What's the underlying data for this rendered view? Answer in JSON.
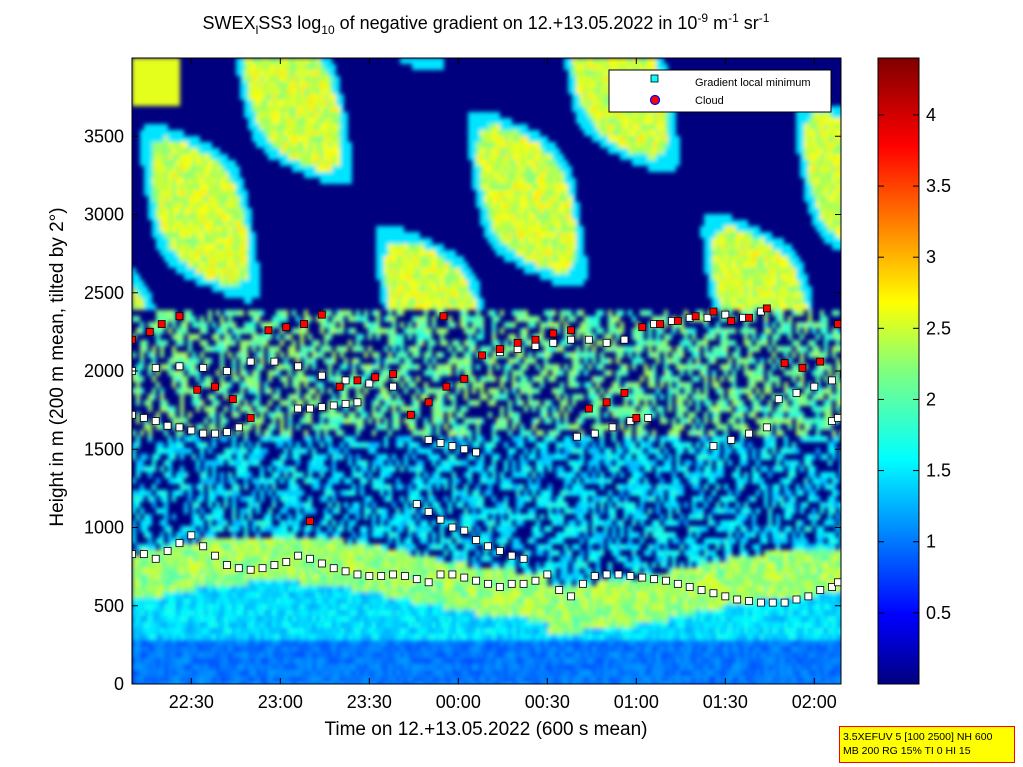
{
  "title": {
    "prefix": "SWEX",
    "sub1": "l",
    "mid": "SS3 log",
    "sub2": "10",
    "suffix": " of negative gradient on 12.+13.05.2022 in 10",
    "exp1": "-9",
    "unit1": " m",
    "exp2": "-1",
    "unit2": " sr",
    "exp3": "-1"
  },
  "xlabel": "Time on 12.+13.05.2022 (600 s mean)",
  "ylabel": "Height in m (200 m mean, tilted by 2°)",
  "info_lines": [
    "3.5XEFUV 5 [100 2500] NH 600",
    "MB 200 RG 15% TI 0 HI 15"
  ],
  "colors": {
    "dark_blue": "#00007f",
    "point_fill": "#ffffff",
    "local_min_fill": "#00ffff",
    "cloud_fill": "#ff0000"
  },
  "chart_data": {
    "type": "heatmap",
    "xlim": [
      "22:10",
      "02:09"
    ],
    "ylim": [
      0,
      4000
    ],
    "x_ticks": [
      "22:30",
      "23:00",
      "23:30",
      "00:00",
      "00:30",
      "01:00",
      "01:30",
      "02:00"
    ],
    "y_ticks": [
      "0",
      "500",
      "1000",
      "1500",
      "2000",
      "2500",
      "3000",
      "3500"
    ],
    "colorbar": {
      "min": 0,
      "max": 4.4,
      "ticks": [
        "0.5",
        "1",
        "1.5",
        "2",
        "2.5",
        "3",
        "3.5",
        "4"
      ],
      "colormap": "jet"
    },
    "legend": {
      "position": "top-right",
      "entries": [
        {
          "label": "Gradient local minimum",
          "marker": "square",
          "color": "#00ffff"
        },
        {
          "label": "Cloud",
          "marker": "circle",
          "color": "#ff0000"
        }
      ]
    },
    "series": [
      {
        "name": "Gradient local minimum",
        "layers": [
          {
            "points": [
              [
                0,
                830
              ],
              [
                4,
                830
              ],
              [
                8,
                800
              ],
              [
                12,
                850
              ],
              [
                16,
                900
              ],
              [
                20,
                950
              ],
              [
                24,
                880
              ],
              [
                28,
                820
              ],
              [
                32,
                760
              ],
              [
                36,
                740
              ],
              [
                40,
                730
              ],
              [
                44,
                740
              ],
              [
                48,
                760
              ],
              [
                52,
                780
              ],
              [
                56,
                820
              ],
              [
                60,
                800
              ],
              [
                64,
                770
              ],
              [
                68,
                740
              ],
              [
                72,
                720
              ],
              [
                76,
                700
              ],
              [
                80,
                690
              ],
              [
                84,
                690
              ],
              [
                88,
                700
              ],
              [
                92,
                690
              ],
              [
                96,
                670
              ],
              [
                100,
                650
              ],
              [
                104,
                700
              ],
              [
                108,
                700
              ],
              [
                112,
                680
              ],
              [
                116,
                660
              ],
              [
                120,
                640
              ],
              [
                124,
                620
              ],
              [
                128,
                640
              ],
              [
                132,
                640
              ],
              [
                136,
                660
              ],
              [
                140,
                700
              ],
              [
                144,
                600
              ],
              [
                148,
                560
              ],
              [
                152,
                640
              ],
              [
                156,
                690
              ],
              [
                160,
                700
              ],
              [
                164,
                700
              ],
              [
                168,
                690
              ],
              [
                172,
                680
              ],
              [
                176,
                670
              ],
              [
                180,
                660
              ],
              [
                184,
                640
              ],
              [
                188,
                620
              ],
              [
                192,
                600
              ],
              [
                196,
                580
              ],
              [
                200,
                560
              ],
              [
                204,
                540
              ],
              [
                208,
                530
              ],
              [
                212,
                520
              ],
              [
                216,
                520
              ],
              [
                220,
                520
              ],
              [
                224,
                540
              ],
              [
                228,
                560
              ],
              [
                232,
                600
              ],
              [
                236,
                620
              ],
              [
                238,
                650
              ]
            ]
          },
          {
            "points": [
              [
                96,
                1150
              ],
              [
                100,
                1100
              ],
              [
                104,
                1050
              ],
              [
                108,
                1000
              ],
              [
                112,
                980
              ],
              [
                116,
                920
              ],
              [
                120,
                880
              ],
              [
                124,
                850
              ],
              [
                128,
                820
              ],
              [
                132,
                800
              ]
            ]
          },
          {
            "points": [
              [
                0,
                1720
              ],
              [
                4,
                1700
              ],
              [
                8,
                1680
              ],
              [
                12,
                1650
              ],
              [
                16,
                1640
              ],
              [
                20,
                1620
              ],
              [
                24,
                1600
              ],
              [
                28,
                1600
              ],
              [
                32,
                1610
              ],
              [
                36,
                1640
              ]
            ]
          },
          {
            "points": [
              [
                0,
                2000
              ],
              [
                8,
                2020
              ],
              [
                16,
                2030
              ],
              [
                24,
                2020
              ],
              [
                32,
                2000
              ],
              [
                40,
                2060
              ],
              [
                48,
                2060
              ],
              [
                56,
                2030
              ],
              [
                64,
                1970
              ],
              [
                72,
                1940
              ],
              [
                80,
                1920
              ],
              [
                88,
                1900
              ]
            ]
          },
          {
            "points": [
              [
                56,
                1760
              ],
              [
                60,
                1760
              ],
              [
                64,
                1770
              ],
              [
                68,
                1780
              ],
              [
                72,
                1790
              ],
              [
                76,
                1800
              ]
            ]
          },
          {
            "points": [
              [
                100,
                1560
              ],
              [
                104,
                1540
              ],
              [
                108,
                1520
              ],
              [
                112,
                1500
              ],
              [
                116,
                1480
              ]
            ]
          },
          {
            "points": [
              [
                124,
                2120
              ],
              [
                130,
                2140
              ],
              [
                136,
                2160
              ],
              [
                142,
                2180
              ],
              [
                148,
                2200
              ],
              [
                154,
                2200
              ],
              [
                160,
                2180
              ],
              [
                166,
                2200
              ]
            ]
          },
          {
            "points": [
              [
                150,
                1580
              ],
              [
                156,
                1600
              ],
              [
                162,
                1640
              ],
              [
                168,
                1680
              ],
              [
                174,
                1700
              ]
            ]
          },
          {
            "points": [
              [
                176,
                2300
              ],
              [
                182,
                2320
              ],
              [
                188,
                2340
              ],
              [
                194,
                2340
              ],
              [
                200,
                2360
              ],
              [
                206,
                2340
              ],
              [
                212,
                2380
              ]
            ]
          },
          {
            "points": [
              [
                196,
                1520
              ],
              [
                202,
                1560
              ],
              [
                208,
                1600
              ],
              [
                214,
                1640
              ]
            ]
          },
          {
            "points": [
              [
                218,
                1820
              ],
              [
                224,
                1860
              ],
              [
                230,
                1900
              ],
              [
                236,
                1940
              ],
              [
                240,
                1980
              ]
            ]
          },
          {
            "points": [
              [
                236,
                1680
              ],
              [
                238,
                1700
              ]
            ]
          }
        ]
      },
      {
        "name": "Cloud",
        "layers": [
          {
            "points": [
              [
                0,
                2200
              ],
              [
                6,
                2250
              ],
              [
                10,
                2300
              ],
              [
                16,
                2350
              ],
              [
                22,
                1880
              ],
              [
                28,
                1900
              ],
              [
                34,
                1820
              ],
              [
                40,
                1700
              ],
              [
                46,
                2260
              ],
              [
                52,
                2280
              ],
              [
                58,
                2300
              ],
              [
                64,
                2360
              ],
              [
                70,
                1900
              ],
              [
                76,
                1940
              ],
              [
                82,
                1960
              ],
              [
                88,
                1980
              ],
              [
                94,
                1720
              ],
              [
                100,
                1800
              ],
              [
                106,
                1900
              ],
              [
                112,
                1950
              ],
              [
                118,
                2100
              ],
              [
                124,
                2140
              ],
              [
                130,
                2180
              ],
              [
                136,
                2200
              ],
              [
                142,
                2240
              ],
              [
                148,
                2260
              ],
              [
                154,
                1760
              ],
              [
                160,
                1800
              ],
              [
                166,
                1860
              ],
              [
                172,
                2280
              ],
              [
                178,
                2300
              ],
              [
                184,
                2320
              ],
              [
                190,
                2350
              ],
              [
                196,
                2380
              ],
              [
                202,
                2320
              ],
              [
                208,
                2340
              ],
              [
                214,
                2400
              ],
              [
                220,
                2050
              ],
              [
                226,
                2020
              ],
              [
                232,
                2060
              ],
              [
                238,
                2300
              ],
              [
                60,
                1040
              ],
              [
                105,
                2350
              ],
              [
                170,
                1700
              ]
            ]
          }
        ]
      }
    ]
  }
}
